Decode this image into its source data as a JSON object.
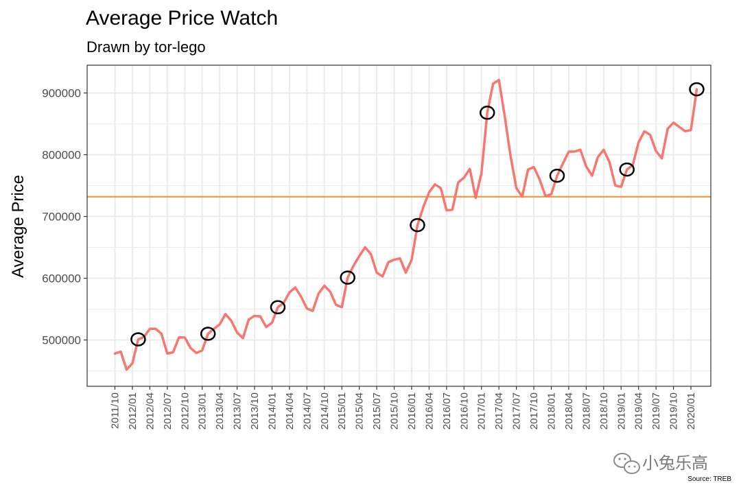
{
  "chart_data": {
    "type": "line",
    "title": "Average Price Watch",
    "subtitle": "Drawn by tor-lego",
    "xlabel": "",
    "ylabel": "Average Price",
    "caption": "Source: TREB",
    "watermark": "小兔乐高",
    "ylim": [
      425000,
      945000
    ],
    "yticks": [
      500000,
      600000,
      700000,
      800000,
      900000
    ],
    "xstart": "2011/10",
    "xtick_labels": [
      "2011/10",
      "2012/01",
      "2012/04",
      "2012/07",
      "2012/10",
      "2013/01",
      "2013/04",
      "2013/07",
      "2013/10",
      "2014/01",
      "2014/04",
      "2014/07",
      "2014/10",
      "2015/01",
      "2015/04",
      "2015/07",
      "2015/10",
      "2016/01",
      "2016/04",
      "2016/07",
      "2016/10",
      "2017/01",
      "2017/04",
      "2017/07",
      "2017/10",
      "2018/01",
      "2018/04",
      "2018/07",
      "2018/10",
      "2019/01",
      "2019/04",
      "2019/07",
      "2019/10",
      "2020/01"
    ],
    "reference_line": 732000,
    "series": [
      {
        "name": "Average Price",
        "color": "#f8766d",
        "values": [
          478000,
          481000,
          452000,
          462000,
          501000,
          505000,
          518000,
          518000,
          510000,
          478000,
          480000,
          504000,
          504000,
          487000,
          479000,
          483000,
          510000,
          518000,
          525000,
          542000,
          531000,
          512000,
          503000,
          533000,
          539000,
          538000,
          521000,
          528000,
          553000,
          560000,
          577000,
          585000,
          570000,
          551000,
          547000,
          575000,
          588000,
          578000,
          557000,
          553000,
          601000,
          620000,
          636000,
          650000,
          639000,
          609000,
          603000,
          626000,
          630000,
          632000,
          609000,
          630000,
          686000,
          715000,
          739000,
          752000,
          746000,
          710000,
          711000,
          755000,
          763000,
          777000,
          730000,
          770000,
          868000,
          915000,
          921000,
          862000,
          798000,
          746000,
          732000,
          776000,
          780000,
          760000,
          733000,
          736000,
          766000,
          786000,
          805000,
          805000,
          808000,
          781000,
          766000,
          796000,
          808000,
          788000,
          750000,
          748000,
          776000,
          783000,
          820000,
          838000,
          832000,
          806000,
          794000,
          842000,
          852000,
          845000,
          838000,
          840000,
          906000
        ]
      }
    ],
    "highlight_months": [
      "2012/02",
      "2013/02",
      "2014/02",
      "2015/02",
      "2016/02",
      "2017/02",
      "2018/02",
      "2019/02",
      "2020/02"
    ]
  },
  "colors": {
    "line": "#f8766d",
    "reference": "#f28e2b",
    "grid": "#ebebeb",
    "panel_border": "#333333",
    "circle": "#000000"
  }
}
